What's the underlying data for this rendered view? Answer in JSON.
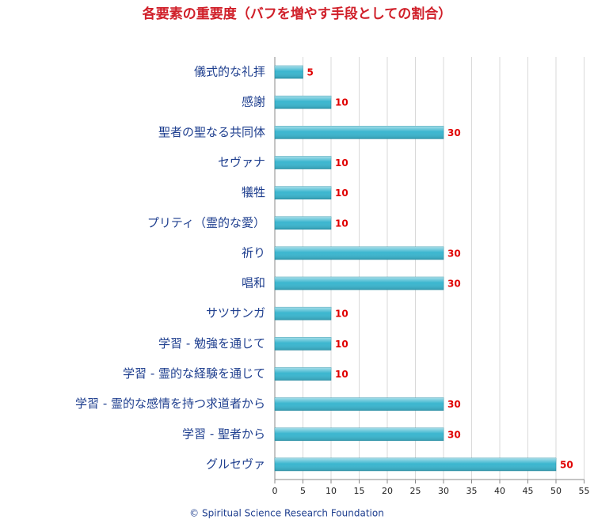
{
  "chart_data": {
    "type": "bar",
    "title": "各要素の重要度（バフを増やす手段としての割合）",
    "footer": "©  Spiritual Science Research Foundation",
    "categories": [
      "儀式的な礼拝",
      "感謝",
      "聖者の聖なる共同体",
      "セヴァナ",
      "犠牲",
      "プリティ（霊的な愛）",
      "祈り",
      "唱和",
      "サツサンガ",
      "学習 - 勉強を通じて",
      "学習 - 霊的な経験を通じて",
      "学習 - 霊的な感情を持つ求道者から",
      "学習 - 聖者から",
      "グルセヴァ"
    ],
    "values": [
      5,
      10,
      30,
      10,
      10,
      10,
      30,
      30,
      10,
      10,
      10,
      30,
      30,
      50
    ],
    "color": "#3bb6cf",
    "xlim": [
      0,
      55
    ],
    "xticks": [
      0,
      5,
      10,
      15,
      20,
      25,
      30,
      35,
      40,
      45,
      50,
      55
    ],
    "grid": true
  }
}
